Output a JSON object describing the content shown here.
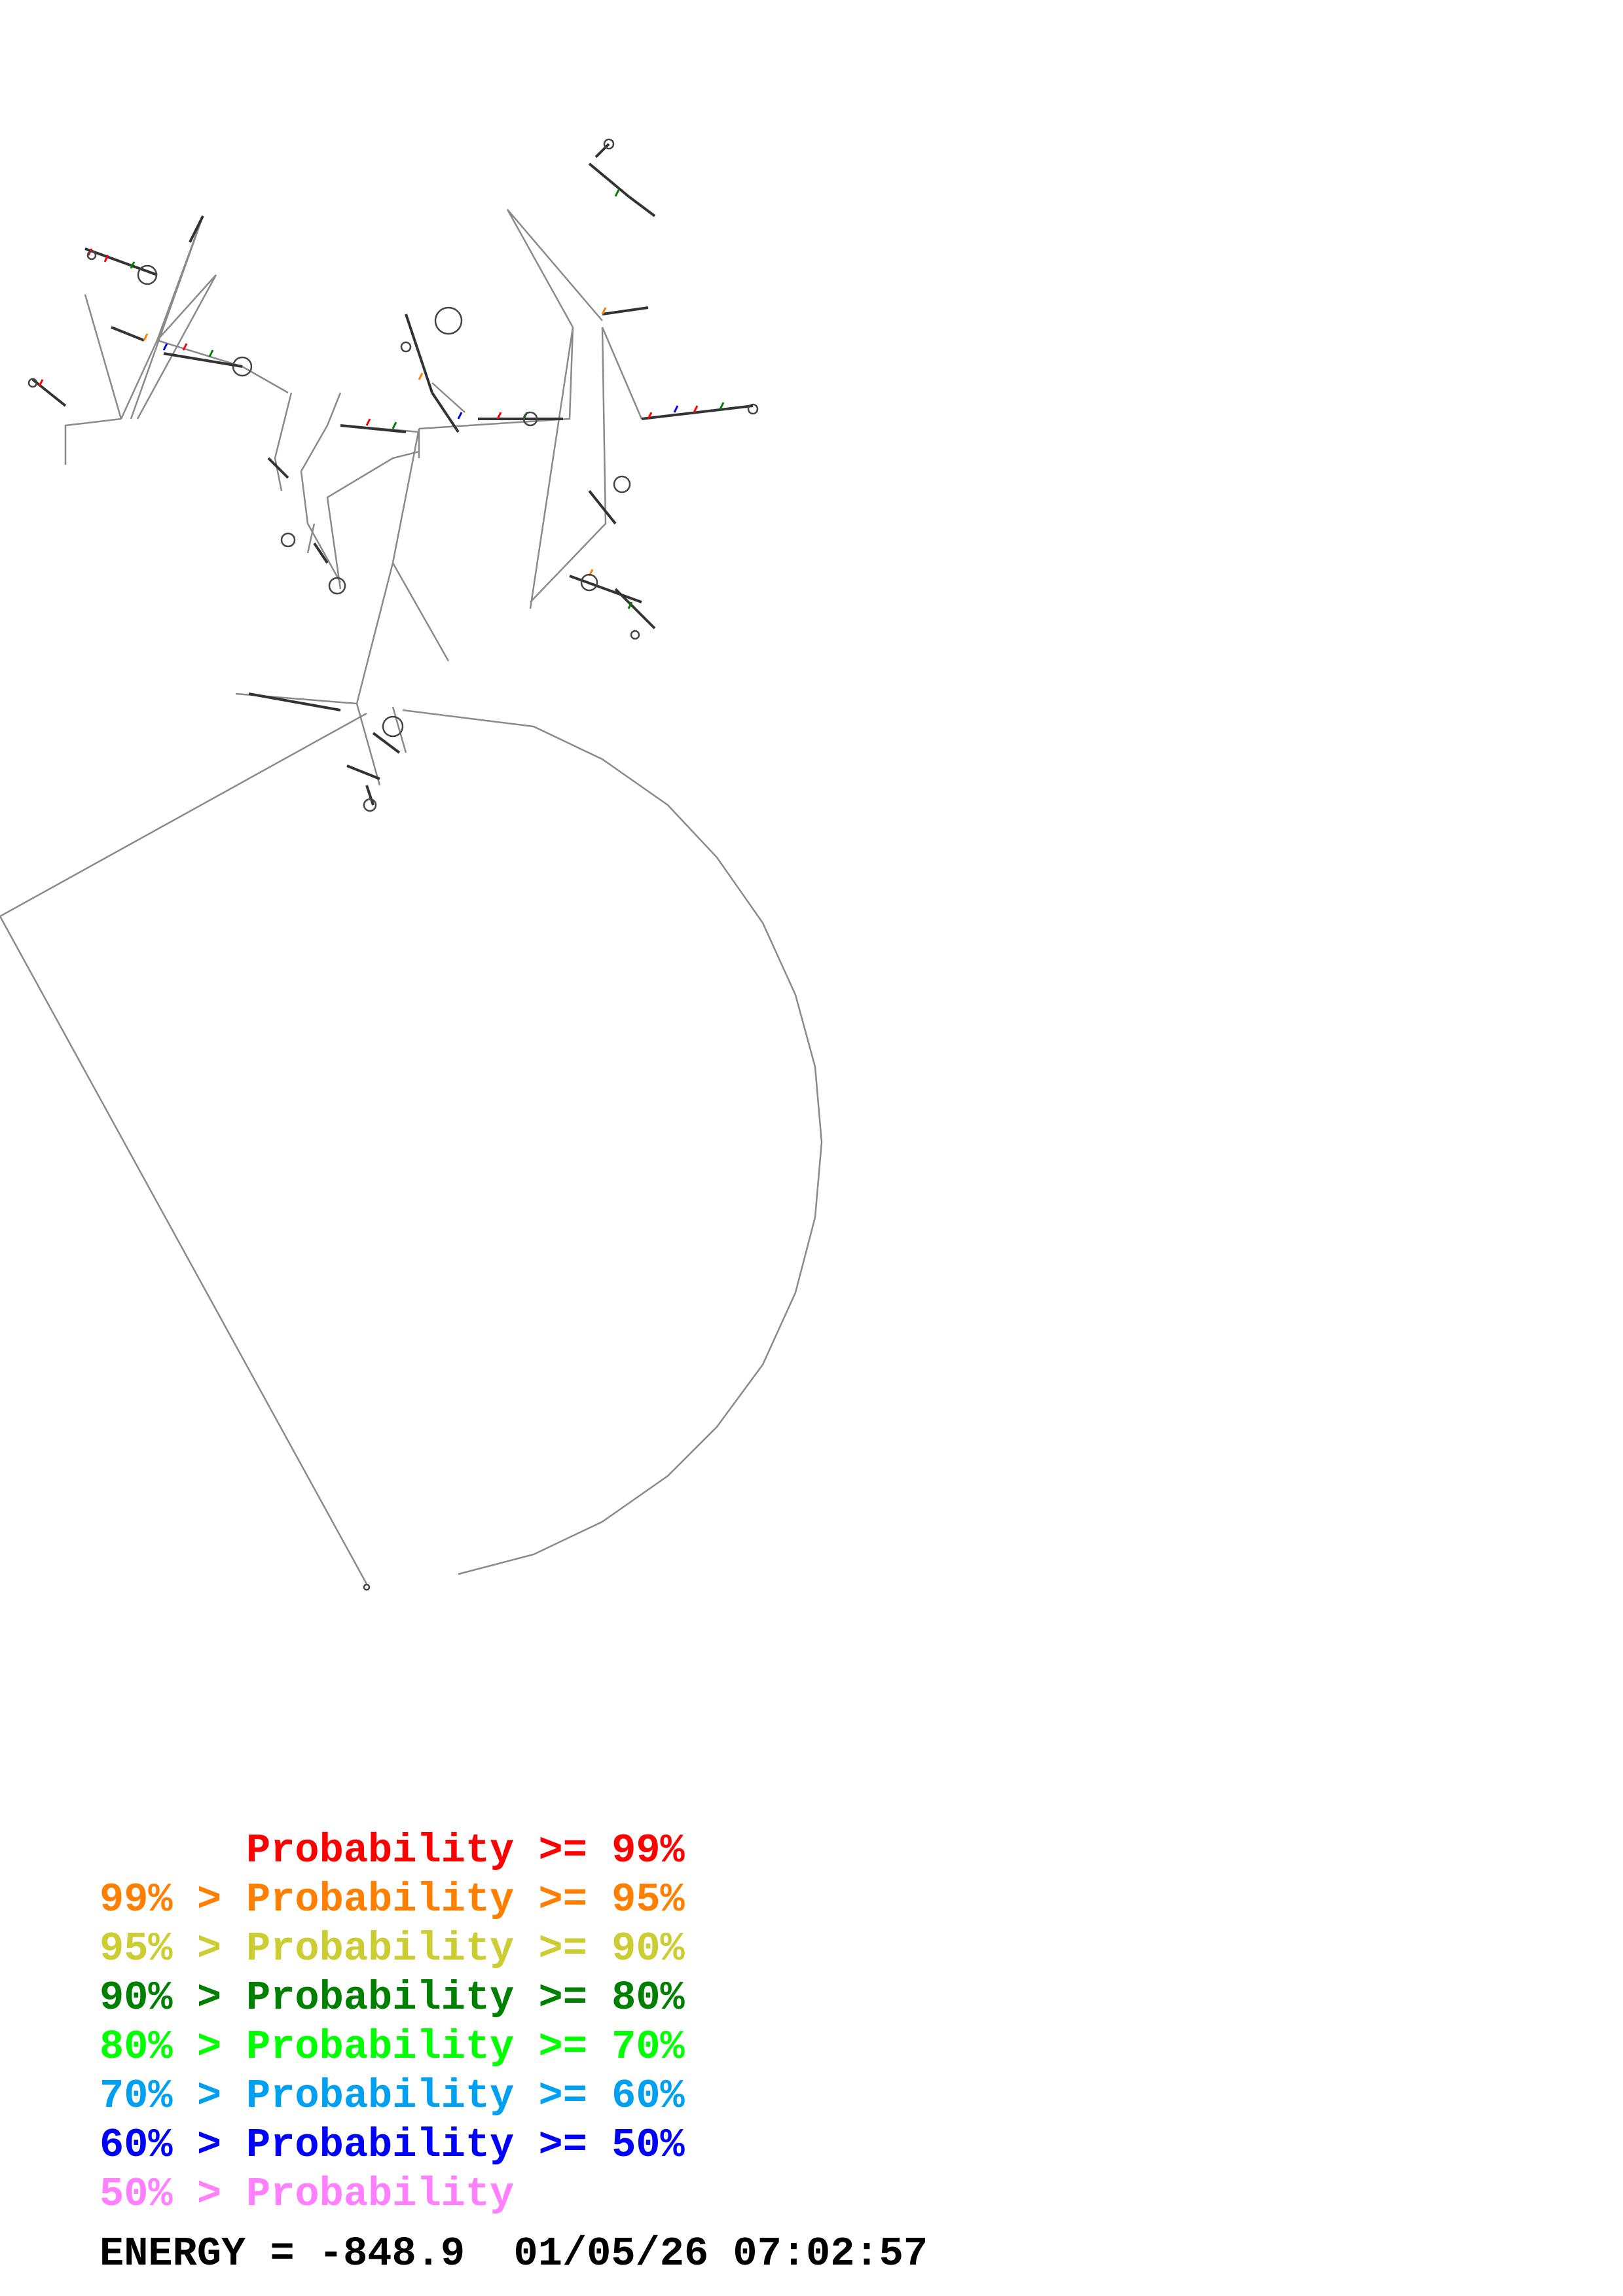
{
  "legend": {
    "rows": [
      {
        "prefix": "",
        "label": "Probability",
        "suffix": ">= 99%",
        "color": "#ff0000"
      },
      {
        "prefix": "99% >",
        "label": "Probability",
        "suffix": ">= 95%",
        "color": "#ff7f00"
      },
      {
        "prefix": "95% >",
        "label": "Probability",
        "suffix": ">= 90%",
        "color": "#cccc33"
      },
      {
        "prefix": "90% >",
        "label": "Probability",
        "suffix": ">= 80%",
        "color": "#008000"
      },
      {
        "prefix": "80% >",
        "label": "Probability",
        "suffix": ">= 70%",
        "color": "#00ff00"
      },
      {
        "prefix": "70% >",
        "label": "Probability",
        "suffix": ">= 60%",
        "color": "#00a0f0"
      },
      {
        "prefix": "60% >",
        "label": "Probability",
        "suffix": ">= 50%",
        "color": "#0000ff"
      },
      {
        "prefix": "50% >",
        "label": "Probability",
        "suffix": "",
        "color": "#ff80ff"
      }
    ]
  },
  "footer": {
    "energy_label": "ENERGY = ",
    "energy_value": "-848.9",
    "date": "01/05/26",
    "time": "07:02:57"
  },
  "diagram": {
    "line_color": "#808080",
    "type": "RNA secondary structure"
  }
}
